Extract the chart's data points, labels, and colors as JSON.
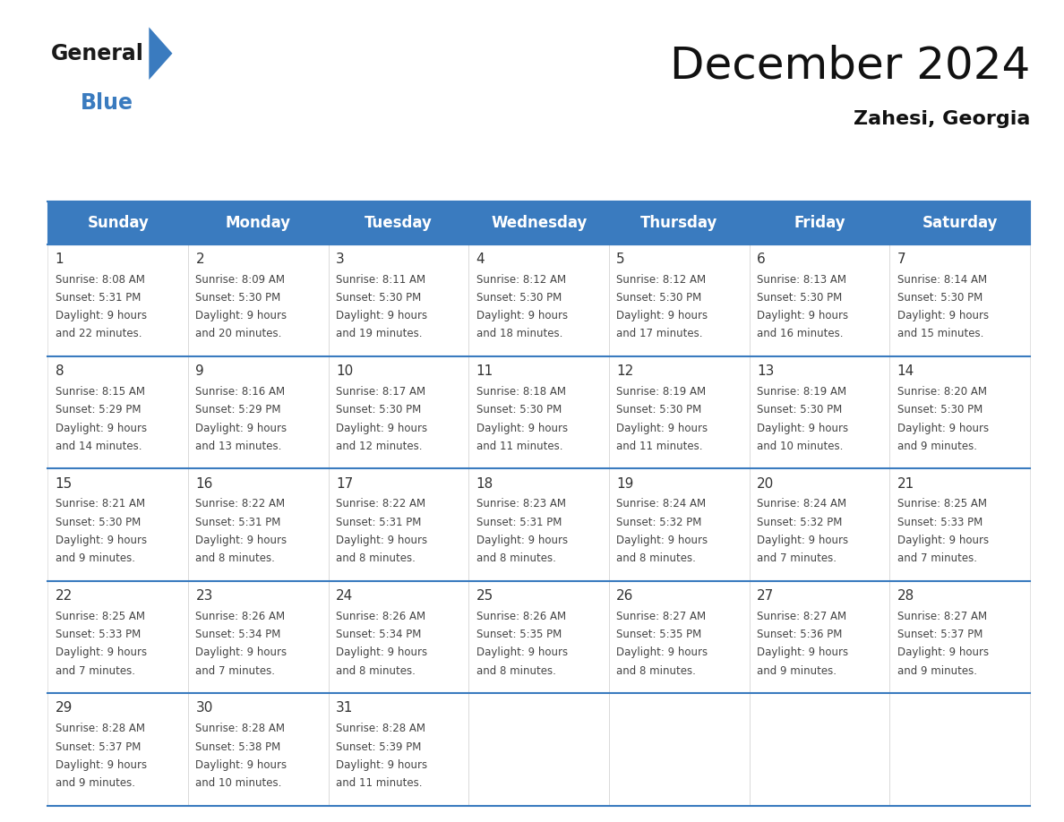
{
  "title": "December 2024",
  "subtitle": "Zahesi, Georgia",
  "header_color": "#3a7bbf",
  "header_text_color": "#ffffff",
  "days_of_week": [
    "Sunday",
    "Monday",
    "Tuesday",
    "Wednesday",
    "Thursday",
    "Friday",
    "Saturday"
  ],
  "border_color": "#3a7bbf",
  "grid_color": "#cccccc",
  "text_color": "#444444",
  "day_num_color": "#333333",
  "calendar_data": [
    [
      {
        "day": 1,
        "sunrise": "8:08 AM",
        "sunset": "5:31 PM",
        "daylight": "9 hours and 22 minutes."
      },
      {
        "day": 2,
        "sunrise": "8:09 AM",
        "sunset": "5:30 PM",
        "daylight": "9 hours and 20 minutes."
      },
      {
        "day": 3,
        "sunrise": "8:11 AM",
        "sunset": "5:30 PM",
        "daylight": "9 hours and 19 minutes."
      },
      {
        "day": 4,
        "sunrise": "8:12 AM",
        "sunset": "5:30 PM",
        "daylight": "9 hours and 18 minutes."
      },
      {
        "day": 5,
        "sunrise": "8:12 AM",
        "sunset": "5:30 PM",
        "daylight": "9 hours and 17 minutes."
      },
      {
        "day": 6,
        "sunrise": "8:13 AM",
        "sunset": "5:30 PM",
        "daylight": "9 hours and 16 minutes."
      },
      {
        "day": 7,
        "sunrise": "8:14 AM",
        "sunset": "5:30 PM",
        "daylight": "9 hours and 15 minutes."
      }
    ],
    [
      {
        "day": 8,
        "sunrise": "8:15 AM",
        "sunset": "5:29 PM",
        "daylight": "9 hours and 14 minutes."
      },
      {
        "day": 9,
        "sunrise": "8:16 AM",
        "sunset": "5:29 PM",
        "daylight": "9 hours and 13 minutes."
      },
      {
        "day": 10,
        "sunrise": "8:17 AM",
        "sunset": "5:30 PM",
        "daylight": "9 hours and 12 minutes."
      },
      {
        "day": 11,
        "sunrise": "8:18 AM",
        "sunset": "5:30 PM",
        "daylight": "9 hours and 11 minutes."
      },
      {
        "day": 12,
        "sunrise": "8:19 AM",
        "sunset": "5:30 PM",
        "daylight": "9 hours and 11 minutes."
      },
      {
        "day": 13,
        "sunrise": "8:19 AM",
        "sunset": "5:30 PM",
        "daylight": "9 hours and 10 minutes."
      },
      {
        "day": 14,
        "sunrise": "8:20 AM",
        "sunset": "5:30 PM",
        "daylight": "9 hours and 9 minutes."
      }
    ],
    [
      {
        "day": 15,
        "sunrise": "8:21 AM",
        "sunset": "5:30 PM",
        "daylight": "9 hours and 9 minutes."
      },
      {
        "day": 16,
        "sunrise": "8:22 AM",
        "sunset": "5:31 PM",
        "daylight": "9 hours and 8 minutes."
      },
      {
        "day": 17,
        "sunrise": "8:22 AM",
        "sunset": "5:31 PM",
        "daylight": "9 hours and 8 minutes."
      },
      {
        "day": 18,
        "sunrise": "8:23 AM",
        "sunset": "5:31 PM",
        "daylight": "9 hours and 8 minutes."
      },
      {
        "day": 19,
        "sunrise": "8:24 AM",
        "sunset": "5:32 PM",
        "daylight": "9 hours and 8 minutes."
      },
      {
        "day": 20,
        "sunrise": "8:24 AM",
        "sunset": "5:32 PM",
        "daylight": "9 hours and 7 minutes."
      },
      {
        "day": 21,
        "sunrise": "8:25 AM",
        "sunset": "5:33 PM",
        "daylight": "9 hours and 7 minutes."
      }
    ],
    [
      {
        "day": 22,
        "sunrise": "8:25 AM",
        "sunset": "5:33 PM",
        "daylight": "9 hours and 7 minutes."
      },
      {
        "day": 23,
        "sunrise": "8:26 AM",
        "sunset": "5:34 PM",
        "daylight": "9 hours and 7 minutes."
      },
      {
        "day": 24,
        "sunrise": "8:26 AM",
        "sunset": "5:34 PM",
        "daylight": "9 hours and 8 minutes."
      },
      {
        "day": 25,
        "sunrise": "8:26 AM",
        "sunset": "5:35 PM",
        "daylight": "9 hours and 8 minutes."
      },
      {
        "day": 26,
        "sunrise": "8:27 AM",
        "sunset": "5:35 PM",
        "daylight": "9 hours and 8 minutes."
      },
      {
        "day": 27,
        "sunrise": "8:27 AM",
        "sunset": "5:36 PM",
        "daylight": "9 hours and 9 minutes."
      },
      {
        "day": 28,
        "sunrise": "8:27 AM",
        "sunset": "5:37 PM",
        "daylight": "9 hours and 9 minutes."
      }
    ],
    [
      {
        "day": 29,
        "sunrise": "8:28 AM",
        "sunset": "5:37 PM",
        "daylight": "9 hours and 9 minutes."
      },
      {
        "day": 30,
        "sunrise": "8:28 AM",
        "sunset": "5:38 PM",
        "daylight": "9 hours and 10 minutes."
      },
      {
        "day": 31,
        "sunrise": "8:28 AM",
        "sunset": "5:39 PM",
        "daylight": "9 hours and 11 minutes."
      },
      null,
      null,
      null,
      null
    ]
  ],
  "logo_text1": "General",
  "logo_text2": "Blue",
  "logo_color1": "#1a1a1a",
  "logo_color2": "#3a7bbf",
  "logo_triangle_color": "#3a7bbf",
  "bg_color": "#ffffff",
  "title_fontsize": 36,
  "subtitle_fontsize": 16,
  "header_fontsize": 12,
  "day_num_fontsize": 11,
  "cell_text_fontsize": 8.5
}
